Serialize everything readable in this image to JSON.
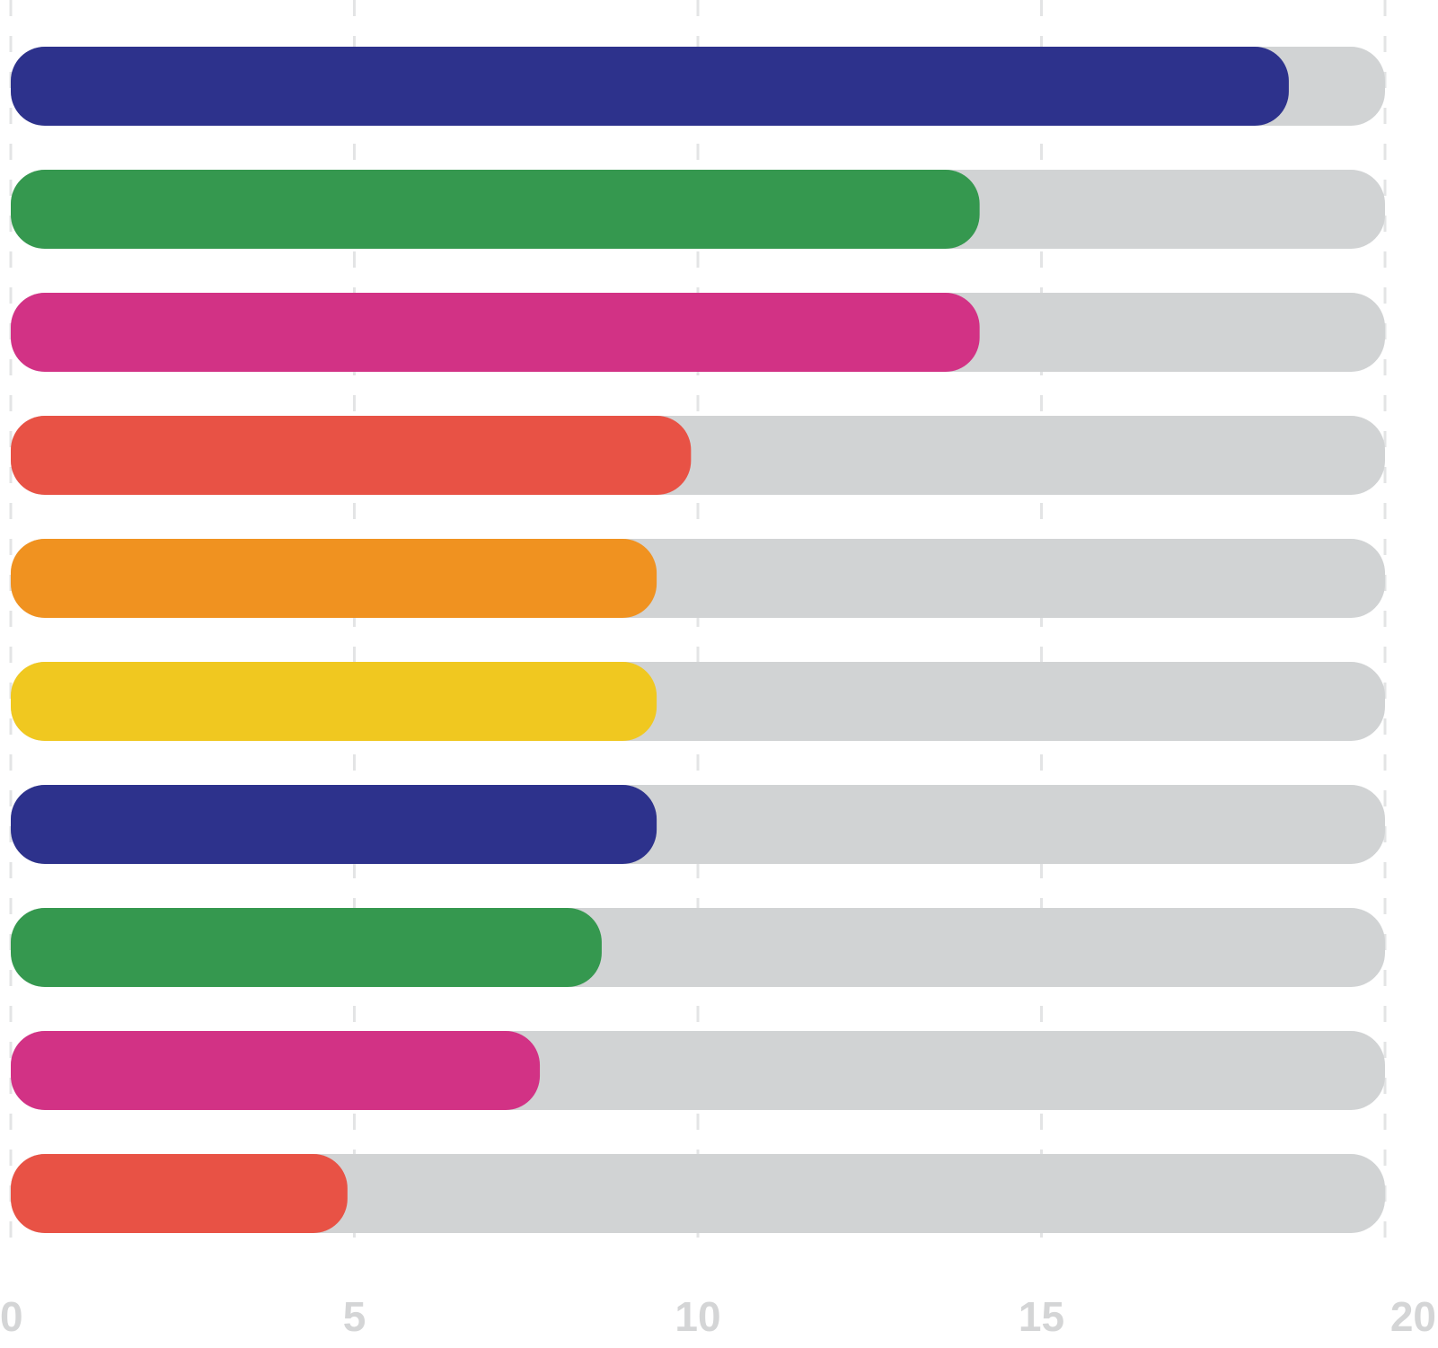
{
  "chart_data": {
    "type": "bar",
    "orientation": "horizontal",
    "values": [
      18.6,
      14.1,
      14.1,
      9.9,
      9.4,
      9.4,
      9.4,
      8.6,
      7.7,
      4.9
    ],
    "colors": [
      "#2d328c",
      "#35984f",
      "#d23285",
      "#e85245",
      "#f09220",
      "#f0c820",
      "#2d328c",
      "#35984f",
      "#d23285",
      "#e85245"
    ],
    "track_color": "#d1d3d4",
    "grid_color": "#e3e4e5",
    "tick_color": "#d4d5d6",
    "xlim": [
      0,
      20
    ],
    "x_ticks": [
      "0",
      "5",
      "10",
      "15",
      "20"
    ],
    "grid": true,
    "title": "",
    "xlabel": "",
    "ylabel": ""
  }
}
